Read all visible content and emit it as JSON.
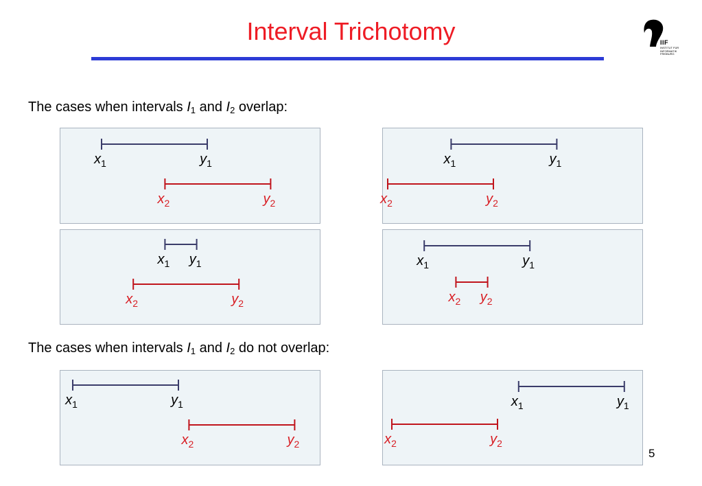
{
  "title": "Interval Trichotomy",
  "logo": {
    "letters": "IIF",
    "line1": "INSTITUT FÜR",
    "line2": "INFORMATIK",
    "line3": "FREIBURG"
  },
  "section_overlap": {
    "before": "The cases when intervals ",
    "i1": "I",
    "s1": "1",
    "mid": " and ",
    "i2": "I",
    "s2": "2",
    "after": " overlap:"
  },
  "section_nonoverlap": {
    "before": "The cases when intervals ",
    "i1": "I",
    "s1": "1",
    "mid": " and ",
    "i2": "I",
    "s2": "2",
    "after": " do not overlap:"
  },
  "page_number": "5",
  "colors": {
    "title": "#ee1c25",
    "rule": "#2c3bd6",
    "panel_bg": "#eef4f7",
    "interval1": "#3a3c6a",
    "interval2": "#c0141c",
    "label2": "#d81e24"
  },
  "labels": {
    "x1": {
      "main": "x",
      "sub": "1"
    },
    "y1": {
      "main": "y",
      "sub": "1"
    },
    "x2": {
      "main": "x",
      "sub": "2"
    },
    "y2": {
      "main": "y",
      "sub": "2"
    }
  },
  "cases": [
    {
      "group": "overlap",
      "i1": [
        0,
        10
      ],
      "i2": [
        6,
        16
      ]
    },
    {
      "group": "overlap",
      "i1": [
        6,
        16
      ],
      "i2": [
        0,
        10
      ]
    },
    {
      "group": "overlap",
      "i1": [
        6,
        9
      ],
      "i2": [
        3,
        13
      ]
    },
    {
      "group": "overlap",
      "i1": [
        3,
        13
      ],
      "i2": [
        6,
        9
      ]
    },
    {
      "group": "non-overlap",
      "i1": [
        0,
        10
      ],
      "i2": [
        11,
        21
      ]
    },
    {
      "group": "non-overlap",
      "i1": [
        12,
        22
      ],
      "i2": [
        0,
        10
      ]
    }
  ]
}
